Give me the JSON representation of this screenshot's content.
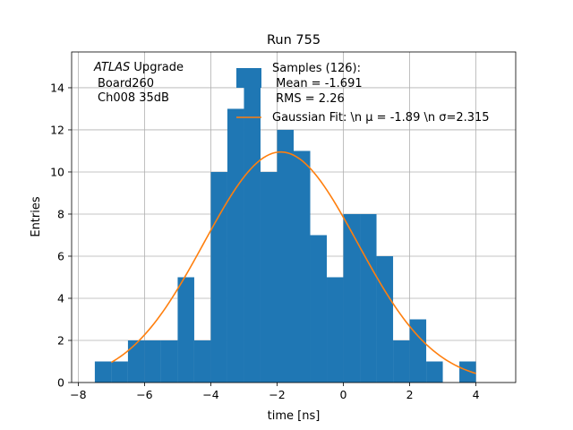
{
  "chart_data": {
    "type": "bar",
    "title": "Run 755",
    "xlabel": "time [ns]",
    "ylabel": "Entries",
    "xlim": [
      -8.2,
      5.2
    ],
    "ylim": [
      0,
      15.7
    ],
    "xticks": [
      "−8",
      "−6",
      "−4",
      "−2",
      "0",
      "2",
      "4"
    ],
    "yticks": [
      "0",
      "2",
      "4",
      "6",
      "8",
      "10",
      "12",
      "14"
    ],
    "grid": true,
    "bin_edges": [
      -7.5,
      -7.0,
      -6.5,
      -6.0,
      -5.5,
      -5.0,
      -4.5,
      -4.0,
      -3.5,
      -3.0,
      -2.5,
      -2.0,
      -1.5,
      -1.0,
      -0.5,
      0.0,
      0.5,
      1.0,
      1.5,
      2.0,
      2.5,
      3.0,
      3.5,
      4.0,
      4.5
    ],
    "counts": [
      1,
      1,
      2,
      2,
      2,
      5,
      2,
      10,
      13,
      14,
      10,
      12,
      11,
      7,
      5,
      8,
      8,
      6,
      2,
      3,
      1,
      0,
      1,
      0
    ],
    "fit": {
      "name": "Gaussian Fit: \\n $\\mu$ = -1.89 \\n $\\sigma$=2.315",
      "mu": -1.89,
      "sigma": 2.315,
      "amplitude": 10.95,
      "x_range": [
        -7.0,
        4.0
      ]
    },
    "legend": {
      "placement": "top-center",
      "hist_entry": [
        "Samples (126):",
        " Mean = -1.691",
        " RMS = 2.26"
      ],
      "fit_entry": "Gaussian Fit: \\n μ = -1.89 \\n σ=2.315"
    },
    "annotation": {
      "atlas": "ATLAS",
      "upgrade": "Upgrade",
      "line2": "Board260",
      "line3": "Ch008 35dB"
    },
    "colors": {
      "bars": "#1f77b4",
      "fit": "#ff7f0e",
      "grid": "#b0b0b0"
    }
  }
}
